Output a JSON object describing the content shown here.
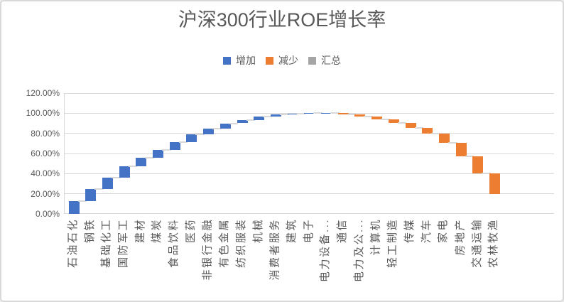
{
  "chart": {
    "title": "沪深300行业ROE增长率",
    "legend": [
      {
        "label": "增加",
        "color": "#4472C4"
      },
      {
        "label": "减少",
        "color": "#ED7D31"
      },
      {
        "label": "汇总",
        "color": "#A5A5A5"
      }
    ],
    "y_axis_ticks": [
      "0.00%",
      "20.00%",
      "40.00%",
      "60.00%",
      "80.00%",
      "100.00%",
      "120.00%"
    ]
  },
  "chart_data": {
    "type": "bar",
    "variant": "waterfall",
    "title": "沪深300行业ROE增长率",
    "categories": [
      "石油石化",
      "钢铁",
      "基础化工",
      "国防军工",
      "建材",
      "煤炭",
      "食品饮料",
      "医药",
      "非银行金融",
      "有色金属",
      "纺织服装",
      "机械",
      "消费者服务",
      "建筑",
      "电子",
      "电力设备...",
      "通信",
      "电力及公...",
      "计算机",
      "轻工制造",
      "传媒",
      "汽车",
      "家电",
      "房地产",
      "交通运输",
      "农林牧渔"
    ],
    "values_pct": [
      13,
      11.5,
      11.5,
      11,
      8.5,
      8,
      8,
      7.5,
      6,
      5,
      3.5,
      3,
      2,
      1,
      0.6,
      0.4,
      -1.7,
      -2.4,
      -2.8,
      -3.3,
      -4.6,
      -6.2,
      -8.8,
      -13.2,
      -17.5,
      -20
    ],
    "cumulative_pct": [
      13,
      24.5,
      36,
      47,
      55.5,
      63.5,
      71.5,
      79,
      85,
      90,
      93.5,
      96.5,
      98.5,
      99.5,
      100.1,
      100.5,
      98.8,
      96.4,
      93.6,
      90.3,
      85.7,
      79.5,
      70.7,
      57.5,
      40,
      20
    ],
    "series_colors": {
      "increase": "#4472C4",
      "decrease": "#ED7D31",
      "total": "#A5A5A5"
    },
    "legend_entries": [
      "增加",
      "减少",
      "汇总"
    ],
    "legend_position": "top",
    "ylim_pct": [
      0,
      120
    ],
    "y_tick_step_pct": 20,
    "grid": true
  }
}
